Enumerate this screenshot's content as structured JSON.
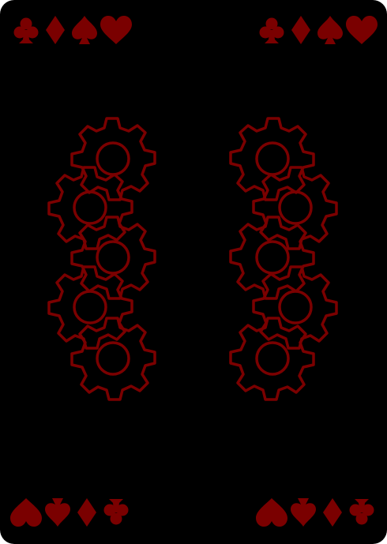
{
  "card": {
    "type": "playing-card-back",
    "background_color": "#000000",
    "ink_color": "#7a0000",
    "corner_suits": [
      "club-icon",
      "diamond-icon",
      "spade-icon",
      "heart-icon"
    ],
    "gear_columns": 2,
    "gears_per_column": 5
  }
}
